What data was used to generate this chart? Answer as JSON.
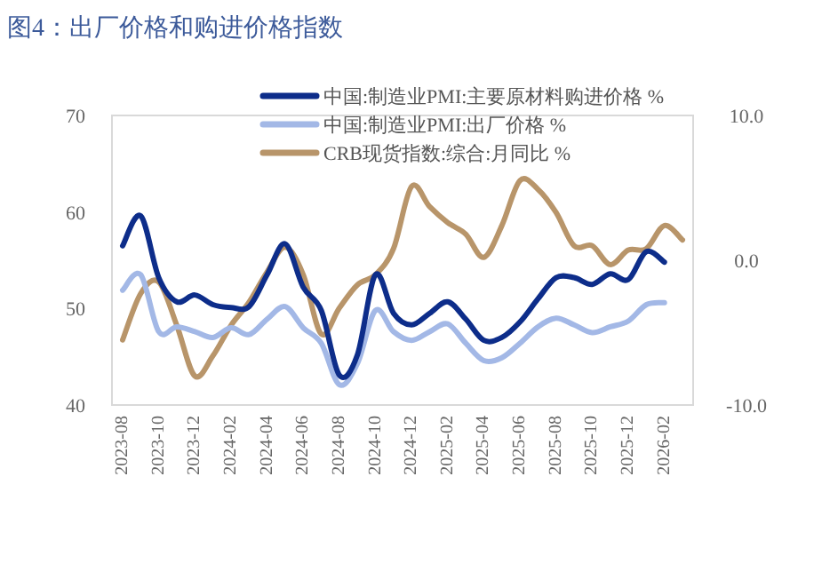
{
  "chart_data": {
    "type": "line",
    "title": "图4：出厂价格和购进价格指数",
    "categories": [
      "2023-08",
      null,
      "2023-10",
      null,
      "2023-12",
      null,
      "2024-02",
      null,
      "2024-04",
      null,
      "2024-06",
      null,
      "2024-08",
      null,
      "2024-10",
      null,
      "2024-12",
      null,
      "2025-02",
      null,
      "2025-04",
      null,
      "2025-06",
      null,
      "2025-08",
      null,
      "2025-10",
      null,
      "2025-12",
      null,
      "2026-02",
      null
    ],
    "series": [
      {
        "name": "中国:制造业PMI:主要原材料购进价格 %",
        "color": "#0d2d8a",
        "values": [
          56.5,
          59.6,
          53.2,
          50.7,
          51.4,
          50.4,
          50.1,
          50.2,
          53.5,
          56.7,
          52.2,
          49.8,
          43.1,
          45.2,
          53.5,
          49.5,
          48.3,
          49.5,
          50.7,
          48.9,
          46.7,
          47.0,
          48.6,
          51.0,
          53.2,
          53.2,
          52.5,
          53.6,
          53.0,
          55.9,
          54.8,
          null
        ]
      },
      {
        "name": "中国:制造业PMI:出厂价格 %",
        "color": "#a3b8e6",
        "values": [
          51.9,
          53.5,
          47.6,
          48.1,
          47.6,
          47.0,
          48.0,
          47.3,
          48.9,
          50.2,
          48.0,
          46.4,
          42.1,
          44.3,
          49.8,
          47.6,
          46.7,
          47.6,
          48.4,
          46.4,
          44.6,
          44.9,
          46.4,
          48.1,
          49.0,
          48.3,
          47.5,
          48.1,
          48.7,
          50.4,
          50.6,
          null
        ]
      },
      {
        "name": "CRB现货指数:综合:月同比 %",
        "color": "#b8956a",
        "axis": "y2",
        "values": [
          -5.5,
          -2.3,
          -1.5,
          -4.5,
          -8.0,
          -6.6,
          -4.5,
          -2.9,
          -0.8,
          0.9,
          -1.0,
          -5.1,
          -3.3,
          -1.7,
          -1.0,
          0.8,
          5.1,
          3.7,
          2.6,
          1.8,
          0.2,
          2.4,
          5.5,
          4.9,
          3.3,
          1.0,
          1.0,
          -0.3,
          0.7,
          0.8,
          2.4,
          1.4
        ]
      }
    ],
    "ylim": [
      40,
      70
    ],
    "yticks": [
      40,
      50,
      60,
      70
    ],
    "y2lim": [
      -10,
      10
    ],
    "y2ticks": [
      {
        "value": -10,
        "label": "-10.0"
      },
      {
        "value": 0,
        "label": "0.0"
      },
      {
        "value": 10,
        "label": "10.0"
      }
    ],
    "legend": "top"
  }
}
